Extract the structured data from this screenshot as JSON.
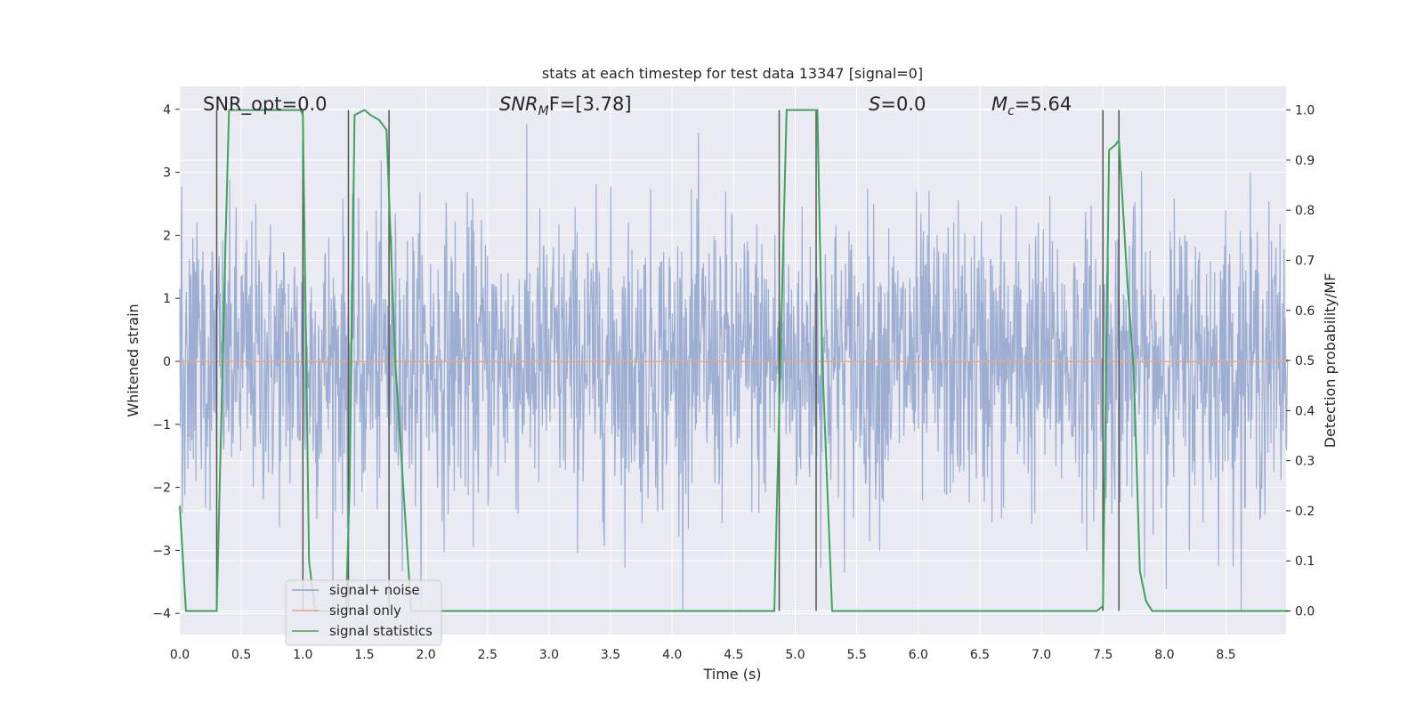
{
  "chart_data": {
    "type": "line",
    "title": "stats at each timestep for test data 13347 [signal=0]",
    "xlabel": "Time (s)",
    "ylabel": "Whitened strain",
    "y2label": "Detection probability/MF",
    "xlim": [
      0.0,
      9.0
    ],
    "ylim": [
      -4.4,
      4.3
    ],
    "y2lim": [
      -0.047,
      1.047
    ],
    "xticks": [
      "0.0",
      "0.5",
      "1.0",
      "1.5",
      "2.0",
      "2.5",
      "3.0",
      "3.5",
      "4.0",
      "4.5",
      "5.0",
      "5.5",
      "6.0",
      "6.5",
      "7.0",
      "7.5",
      "8.0",
      "8.5"
    ],
    "yticks": [
      "−4",
      "−3",
      "−2",
      "−1",
      "0",
      "1",
      "2",
      "3",
      "4"
    ],
    "y2ticks": [
      "0.0",
      "0.1",
      "0.2",
      "0.3",
      "0.4",
      "0.5",
      "0.6",
      "0.7",
      "0.8",
      "0.9",
      "1.0"
    ],
    "annotations": {
      "snr_opt": "SNR_opt=0.0",
      "snr_mf": "SNR",
      "snr_mf_sub": "M",
      "snr_mf_rest": "F=[3.78]",
      "s": "S",
      "s_rest": "=0.0",
      "mc": "M",
      "mc_sub": "c",
      "mc_rest": "=5.64"
    },
    "legend": {
      "position": "lower-left",
      "entries": [
        "signal+ noise",
        "signal only",
        "signal statistics"
      ]
    },
    "series": [
      {
        "name": "signal+ noise",
        "axis": "left",
        "color": "#8fa3cc",
        "kind": "noise",
        "description": "whitened strain samples, approx. standard normal, range about -3.9 to 4.0"
      },
      {
        "name": "signal only",
        "axis": "left",
        "color": "#e8a584",
        "x": [
          0.0,
          9.0
        ],
        "y": [
          0.0,
          0.0
        ]
      },
      {
        "name": "signal statistics",
        "axis": "right",
        "color": "#3fa35b",
        "x": [
          0.0,
          0.05,
          0.3,
          0.37,
          0.4,
          0.98,
          1.0,
          1.05,
          1.1,
          1.35,
          1.38,
          1.42,
          1.5,
          1.55,
          1.62,
          1.68,
          1.75,
          1.88,
          4.83,
          4.88,
          4.93,
          5.18,
          5.22,
          5.3,
          6.1,
          6.15,
          7.45,
          7.5,
          7.55,
          7.6,
          7.63,
          7.7,
          7.75,
          7.8,
          7.85,
          7.9,
          9.0
        ],
        "y": [
          0.21,
          0.0,
          0.0,
          0.72,
          1.0,
          1.0,
          0.99,
          0.1,
          0.0,
          0.0,
          0.25,
          0.99,
          1.0,
          0.99,
          0.98,
          0.96,
          0.5,
          0.0,
          0.0,
          0.5,
          1.0,
          1.0,
          0.5,
          0.0,
          0.0,
          0.0,
          0.0,
          0.01,
          0.92,
          0.93,
          0.94,
          0.65,
          0.48,
          0.08,
          0.02,
          0.0,
          0.0
        ]
      }
    ],
    "vlines": [
      0.3,
      1.0,
      1.37,
      1.7,
      4.87,
      5.17,
      7.5,
      7.63
    ]
  }
}
